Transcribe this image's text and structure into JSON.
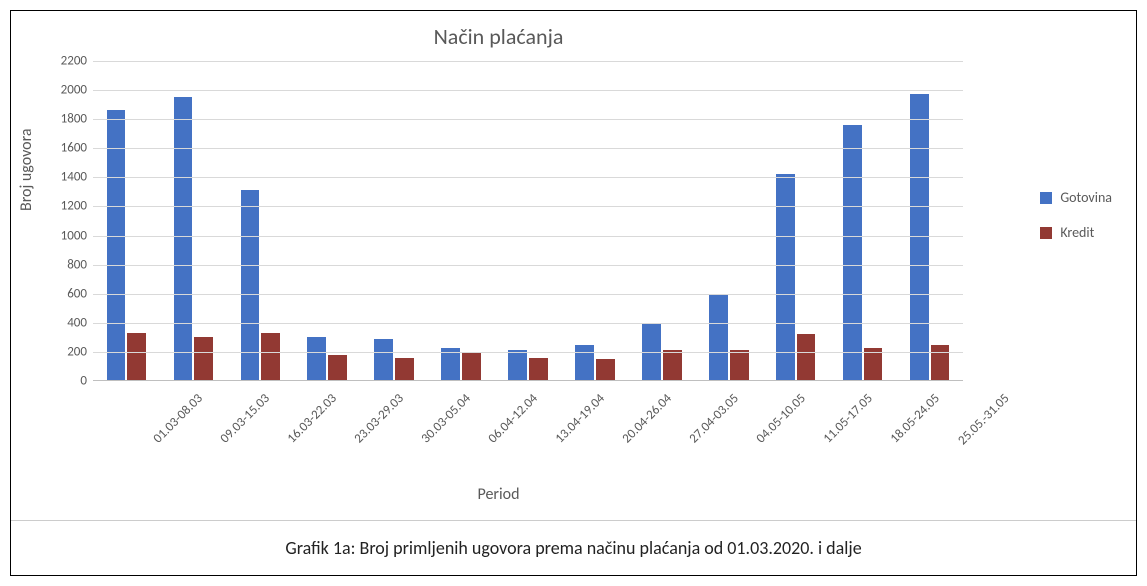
{
  "chart": {
    "type": "bar",
    "title": "Način plaćanja",
    "title_fontsize": 22,
    "x_axis_label": "Period",
    "y_axis_label": "Broj ugovora",
    "label_fontsize": 16,
    "tick_fontsize": 13,
    "ylim": [
      0,
      2200
    ],
    "ytick_step": 200,
    "yticks": [
      0,
      200,
      400,
      600,
      800,
      1000,
      1200,
      1400,
      1600,
      1800,
      2000,
      2200
    ],
    "background_color": "#ffffff",
    "grid_color": "#d9d9d9",
    "text_color": "#595959",
    "bar_width_ratio": 0.28,
    "x_tick_rotation_deg": -45,
    "categories": [
      "01.03-08.03",
      "09.03-15.03",
      "16.03-22.03",
      "23.03-29.03",
      "30.03-05.04",
      "06.04-12.04",
      "13.04-19.04",
      "20.04-26.04",
      "27.04-03.05",
      "04.05-10.05",
      "11.05-17.05",
      "18.05-24.05",
      "25.05.-31.05"
    ],
    "series": [
      {
        "name": "Gotovina",
        "color": "#4472c4",
        "values": [
          1860,
          1950,
          1310,
          300,
          290,
          230,
          210,
          250,
          390,
          590,
          1420,
          1760,
          1970
        ]
      },
      {
        "name": "Kredit",
        "color": "#923933",
        "values": [
          330,
          300,
          330,
          180,
          160,
          190,
          160,
          150,
          210,
          215,
          320,
          225,
          250
        ]
      }
    ],
    "legend": {
      "position": "right",
      "items": [
        "Gotovina",
        "Kredit"
      ]
    }
  },
  "caption": "Grafik 1a: Broj primljenih ugovora prema načinu plaćanja od 01.03.2020. i dalje"
}
